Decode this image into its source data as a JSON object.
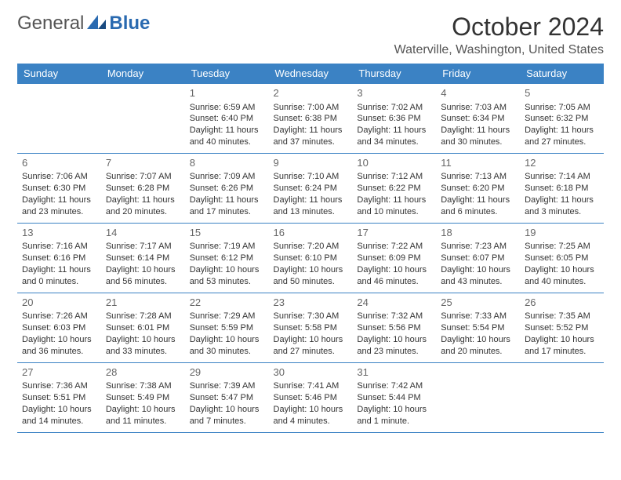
{
  "logo": {
    "text1": "General",
    "text2": "Blue"
  },
  "title": "October 2024",
  "location": "Waterville, Washington, United States",
  "colors": {
    "header_bg": "#3b82c4",
    "header_text": "#ffffff",
    "border": "#3b82c4"
  },
  "headers": [
    "Sunday",
    "Monday",
    "Tuesday",
    "Wednesday",
    "Thursday",
    "Friday",
    "Saturday"
  ],
  "weeks": [
    [
      null,
      null,
      {
        "day": "1",
        "sunrise": "Sunrise: 6:59 AM",
        "sunset": "Sunset: 6:40 PM",
        "daylight1": "Daylight: 11 hours",
        "daylight2": "and 40 minutes."
      },
      {
        "day": "2",
        "sunrise": "Sunrise: 7:00 AM",
        "sunset": "Sunset: 6:38 PM",
        "daylight1": "Daylight: 11 hours",
        "daylight2": "and 37 minutes."
      },
      {
        "day": "3",
        "sunrise": "Sunrise: 7:02 AM",
        "sunset": "Sunset: 6:36 PM",
        "daylight1": "Daylight: 11 hours",
        "daylight2": "and 34 minutes."
      },
      {
        "day": "4",
        "sunrise": "Sunrise: 7:03 AM",
        "sunset": "Sunset: 6:34 PM",
        "daylight1": "Daylight: 11 hours",
        "daylight2": "and 30 minutes."
      },
      {
        "day": "5",
        "sunrise": "Sunrise: 7:05 AM",
        "sunset": "Sunset: 6:32 PM",
        "daylight1": "Daylight: 11 hours",
        "daylight2": "and 27 minutes."
      }
    ],
    [
      {
        "day": "6",
        "sunrise": "Sunrise: 7:06 AM",
        "sunset": "Sunset: 6:30 PM",
        "daylight1": "Daylight: 11 hours",
        "daylight2": "and 23 minutes."
      },
      {
        "day": "7",
        "sunrise": "Sunrise: 7:07 AM",
        "sunset": "Sunset: 6:28 PM",
        "daylight1": "Daylight: 11 hours",
        "daylight2": "and 20 minutes."
      },
      {
        "day": "8",
        "sunrise": "Sunrise: 7:09 AM",
        "sunset": "Sunset: 6:26 PM",
        "daylight1": "Daylight: 11 hours",
        "daylight2": "and 17 minutes."
      },
      {
        "day": "9",
        "sunrise": "Sunrise: 7:10 AM",
        "sunset": "Sunset: 6:24 PM",
        "daylight1": "Daylight: 11 hours",
        "daylight2": "and 13 minutes."
      },
      {
        "day": "10",
        "sunrise": "Sunrise: 7:12 AM",
        "sunset": "Sunset: 6:22 PM",
        "daylight1": "Daylight: 11 hours",
        "daylight2": "and 10 minutes."
      },
      {
        "day": "11",
        "sunrise": "Sunrise: 7:13 AM",
        "sunset": "Sunset: 6:20 PM",
        "daylight1": "Daylight: 11 hours",
        "daylight2": "and 6 minutes."
      },
      {
        "day": "12",
        "sunrise": "Sunrise: 7:14 AM",
        "sunset": "Sunset: 6:18 PM",
        "daylight1": "Daylight: 11 hours",
        "daylight2": "and 3 minutes."
      }
    ],
    [
      {
        "day": "13",
        "sunrise": "Sunrise: 7:16 AM",
        "sunset": "Sunset: 6:16 PM",
        "daylight1": "Daylight: 11 hours",
        "daylight2": "and 0 minutes."
      },
      {
        "day": "14",
        "sunrise": "Sunrise: 7:17 AM",
        "sunset": "Sunset: 6:14 PM",
        "daylight1": "Daylight: 10 hours",
        "daylight2": "and 56 minutes."
      },
      {
        "day": "15",
        "sunrise": "Sunrise: 7:19 AM",
        "sunset": "Sunset: 6:12 PM",
        "daylight1": "Daylight: 10 hours",
        "daylight2": "and 53 minutes."
      },
      {
        "day": "16",
        "sunrise": "Sunrise: 7:20 AM",
        "sunset": "Sunset: 6:10 PM",
        "daylight1": "Daylight: 10 hours",
        "daylight2": "and 50 minutes."
      },
      {
        "day": "17",
        "sunrise": "Sunrise: 7:22 AM",
        "sunset": "Sunset: 6:09 PM",
        "daylight1": "Daylight: 10 hours",
        "daylight2": "and 46 minutes."
      },
      {
        "day": "18",
        "sunrise": "Sunrise: 7:23 AM",
        "sunset": "Sunset: 6:07 PM",
        "daylight1": "Daylight: 10 hours",
        "daylight2": "and 43 minutes."
      },
      {
        "day": "19",
        "sunrise": "Sunrise: 7:25 AM",
        "sunset": "Sunset: 6:05 PM",
        "daylight1": "Daylight: 10 hours",
        "daylight2": "and 40 minutes."
      }
    ],
    [
      {
        "day": "20",
        "sunrise": "Sunrise: 7:26 AM",
        "sunset": "Sunset: 6:03 PM",
        "daylight1": "Daylight: 10 hours",
        "daylight2": "and 36 minutes."
      },
      {
        "day": "21",
        "sunrise": "Sunrise: 7:28 AM",
        "sunset": "Sunset: 6:01 PM",
        "daylight1": "Daylight: 10 hours",
        "daylight2": "and 33 minutes."
      },
      {
        "day": "22",
        "sunrise": "Sunrise: 7:29 AM",
        "sunset": "Sunset: 5:59 PM",
        "daylight1": "Daylight: 10 hours",
        "daylight2": "and 30 minutes."
      },
      {
        "day": "23",
        "sunrise": "Sunrise: 7:30 AM",
        "sunset": "Sunset: 5:58 PM",
        "daylight1": "Daylight: 10 hours",
        "daylight2": "and 27 minutes."
      },
      {
        "day": "24",
        "sunrise": "Sunrise: 7:32 AM",
        "sunset": "Sunset: 5:56 PM",
        "daylight1": "Daylight: 10 hours",
        "daylight2": "and 23 minutes."
      },
      {
        "day": "25",
        "sunrise": "Sunrise: 7:33 AM",
        "sunset": "Sunset: 5:54 PM",
        "daylight1": "Daylight: 10 hours",
        "daylight2": "and 20 minutes."
      },
      {
        "day": "26",
        "sunrise": "Sunrise: 7:35 AM",
        "sunset": "Sunset: 5:52 PM",
        "daylight1": "Daylight: 10 hours",
        "daylight2": "and 17 minutes."
      }
    ],
    [
      {
        "day": "27",
        "sunrise": "Sunrise: 7:36 AM",
        "sunset": "Sunset: 5:51 PM",
        "daylight1": "Daylight: 10 hours",
        "daylight2": "and 14 minutes."
      },
      {
        "day": "28",
        "sunrise": "Sunrise: 7:38 AM",
        "sunset": "Sunset: 5:49 PM",
        "daylight1": "Daylight: 10 hours",
        "daylight2": "and 11 minutes."
      },
      {
        "day": "29",
        "sunrise": "Sunrise: 7:39 AM",
        "sunset": "Sunset: 5:47 PM",
        "daylight1": "Daylight: 10 hours",
        "daylight2": "and 7 minutes."
      },
      {
        "day": "30",
        "sunrise": "Sunrise: 7:41 AM",
        "sunset": "Sunset: 5:46 PM",
        "daylight1": "Daylight: 10 hours",
        "daylight2": "and 4 minutes."
      },
      {
        "day": "31",
        "sunrise": "Sunrise: 7:42 AM",
        "sunset": "Sunset: 5:44 PM",
        "daylight1": "Daylight: 10 hours",
        "daylight2": "and 1 minute."
      },
      null,
      null
    ]
  ]
}
